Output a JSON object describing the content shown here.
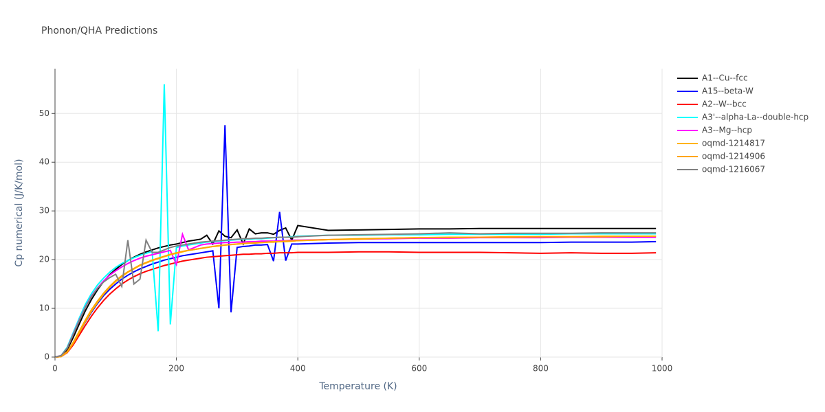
{
  "chart_data": {
    "type": "line",
    "title": "Phonon/QHA Predictions",
    "xlabel": "Temperature (K)",
    "ylabel": "Cp numerical (J/K/mol)",
    "x": [
      0,
      10,
      20,
      30,
      40,
      50,
      60,
      70,
      80,
      90,
      100,
      110,
      120,
      130,
      140,
      150,
      160,
      170,
      180,
      190,
      200,
      210,
      220,
      230,
      240,
      250,
      260,
      270,
      280,
      290,
      300,
      310,
      320,
      330,
      340,
      350,
      360,
      370,
      380,
      390,
      400,
      450,
      500,
      550,
      600,
      650,
      700,
      750,
      800,
      850,
      900,
      950,
      990
    ],
    "series": [
      {
        "name": "A1--Cu--fcc",
        "color": "#000000",
        "values": [
          0,
          0.2,
          1.5,
          4,
          6.8,
          9.5,
          11.8,
          13.8,
          15.5,
          16.9,
          18,
          19,
          19.8,
          20.5,
          21.1,
          21.6,
          22,
          22.4,
          22.7,
          23,
          23.2,
          23.5,
          23.8,
          24,
          24.2,
          25,
          23.2,
          25.9,
          24.8,
          24.5,
          26.1,
          23.2,
          26.3,
          25.3,
          25.5,
          25.5,
          25.2,
          26,
          26.5,
          24,
          27,
          26,
          26.1,
          26.2,
          26.3,
          26.3,
          26.4,
          26.4,
          26.4,
          26.4,
          26.4,
          26.4,
          26.4
        ]
      },
      {
        "name": "A15--beta-W",
        "color": "#0000ff",
        "values": [
          0,
          0.1,
          1,
          2.8,
          5,
          7.2,
          9.2,
          11,
          12.6,
          13.9,
          15,
          16,
          16.8,
          17.5,
          18.1,
          18.6,
          19.1,
          19.5,
          19.9,
          20.2,
          20.5,
          20.8,
          21,
          21.2,
          21.4,
          21.6,
          21.8,
          10,
          47.6,
          9.2,
          22.5,
          22.7,
          22.8,
          23,
          23,
          23.1,
          19.7,
          29.8,
          19.8,
          23.2,
          23.2,
          23.4,
          23.5,
          23.5,
          23.5,
          23.5,
          23.5,
          23.5,
          23.5,
          23.6,
          23.6,
          23.6,
          23.7
        ]
      },
      {
        "name": "A2--W--bcc",
        "color": "#ff0000",
        "values": [
          0,
          0.1,
          0.9,
          2.5,
          4.5,
          6.5,
          8.4,
          10.1,
          11.6,
          12.9,
          14,
          15,
          15.8,
          16.5,
          17.1,
          17.6,
          18,
          18.4,
          18.8,
          19.1,
          19.4,
          19.7,
          19.9,
          20.1,
          20.3,
          20.5,
          20.6,
          20.7,
          20.8,
          20.9,
          21,
          21.1,
          21.1,
          21.2,
          21.2,
          21.3,
          21.3,
          21.4,
          21.4,
          21.4,
          21.5,
          21.5,
          21.6,
          21.6,
          21.5,
          21.5,
          21.5,
          21.4,
          21.3,
          21.4,
          21.3,
          21.3,
          21.4
        ]
      },
      {
        "name": "A3'--alpha-La--double-hcp",
        "color": "#00ffff",
        "values": [
          0,
          0.3,
          2,
          5,
          8,
          10.8,
          13,
          14.8,
          16.2,
          17.4,
          18.4,
          19.2,
          19.8,
          20.4,
          20.9,
          21.3,
          21.7,
          5.3,
          56,
          6.7,
          22.5,
          22.8,
          23,
          23.2,
          23.4,
          23.6,
          23.7,
          23.8,
          23.9,
          24,
          24.1,
          24.2,
          24.2,
          24.3,
          24.3,
          24.4,
          24.5,
          24.6,
          24.6,
          24.7,
          24.8,
          25,
          25,
          25.1,
          25.1,
          25.2,
          25.2,
          25.2,
          25.2,
          25.3,
          25.3,
          25.3,
          25.3
        ]
      },
      {
        "name": "A3--Mg--hcp",
        "color": "#ff00ff",
        "values": [
          0,
          0.3,
          1.8,
          4.7,
          7.6,
          10.3,
          12.5,
          14.2,
          15.6,
          16.8,
          17.7,
          18.5,
          19.2,
          19.8,
          20.3,
          20.7,
          21,
          21.3,
          21.6,
          21.9,
          19,
          25.2,
          22,
          22.5,
          23,
          23.2,
          23.3,
          23.4,
          23.5,
          23.5,
          23.6,
          23.6,
          23.7,
          23.7,
          23.8,
          23.8,
          23.8,
          23.9,
          23.9,
          24,
          24,
          24.1,
          24.2,
          24.3,
          24.4,
          24.4,
          24.5,
          24.5,
          24.5,
          24.6,
          24.6,
          24.6,
          24.6
        ]
      },
      {
        "name": "oqmd-1214817",
        "color": "#ffb300",
        "values": [
          0,
          0.1,
          1,
          2.8,
          5,
          7.3,
          9.4,
          11.2,
          12.9,
          14.3,
          15.5,
          16.5,
          17.4,
          18.1,
          18.8,
          19.3,
          19.8,
          20.2,
          20.6,
          21,
          21.3,
          21.6,
          21.9,
          22.1,
          22.3,
          22.5,
          22.7,
          22.9,
          23,
          23.1,
          23.2,
          23.3,
          23.4,
          23.5,
          23.5,
          23.6,
          23.7,
          23.7,
          23.8,
          23.8,
          23.9,
          24.1,
          24.3,
          24.4,
          24.5,
          24.6,
          24.6,
          24.7,
          24.7,
          24.7,
          24.8,
          24.8,
          24.8
        ]
      },
      {
        "name": "oqmd-1214906",
        "color": "#ffa500",
        "values": [
          0,
          0.1,
          1.1,
          3,
          5.3,
          7.6,
          9.7,
          11.5,
          13.1,
          14.5,
          15.7,
          16.7,
          17.5,
          18.2,
          18.9,
          19.4,
          19.9,
          20.3,
          20.7,
          21.1,
          21.4,
          21.7,
          21.9,
          22.1,
          22.3,
          22.5,
          22.7,
          22.8,
          23,
          23.1,
          23.2,
          23.3,
          23.4,
          23.4,
          23.5,
          23.6,
          23.6,
          23.7,
          23.7,
          23.8,
          23.9,
          24.1,
          24.2,
          24.4,
          24.5,
          24.5,
          24.6,
          24.6,
          24.7,
          24.7,
          24.7,
          24.8,
          24.8
        ]
      },
      {
        "name": "oqmd-1216067",
        "color": "#808080",
        "values": [
          0,
          0.3,
          1.8,
          4.6,
          7.5,
          10.2,
          12.4,
          14.1,
          15.4,
          16.3,
          17,
          14.5,
          24,
          15,
          16,
          24,
          21.5,
          21.5,
          22,
          22.5,
          22.8,
          23,
          23.2,
          23.4,
          23.6,
          23.7,
          23.8,
          23.9,
          24,
          24.1,
          24.2,
          24.3,
          24.3,
          24.4,
          24.4,
          24.5,
          24.5,
          24.6,
          24.6,
          24.6,
          24.7,
          25,
          25.1,
          25.2,
          25.3,
          25.5,
          25.3,
          25.4,
          25.4,
          25.4,
          25.5,
          25.5,
          25.5
        ]
      }
    ],
    "xlim": [
      0,
      1000
    ],
    "ylim": [
      0,
      59.2
    ],
    "xticks": [
      0,
      200,
      400,
      600,
      800,
      1000
    ],
    "yticks": [
      0,
      10,
      20,
      30,
      40,
      50
    ],
    "grid": true,
    "legend": "right"
  }
}
